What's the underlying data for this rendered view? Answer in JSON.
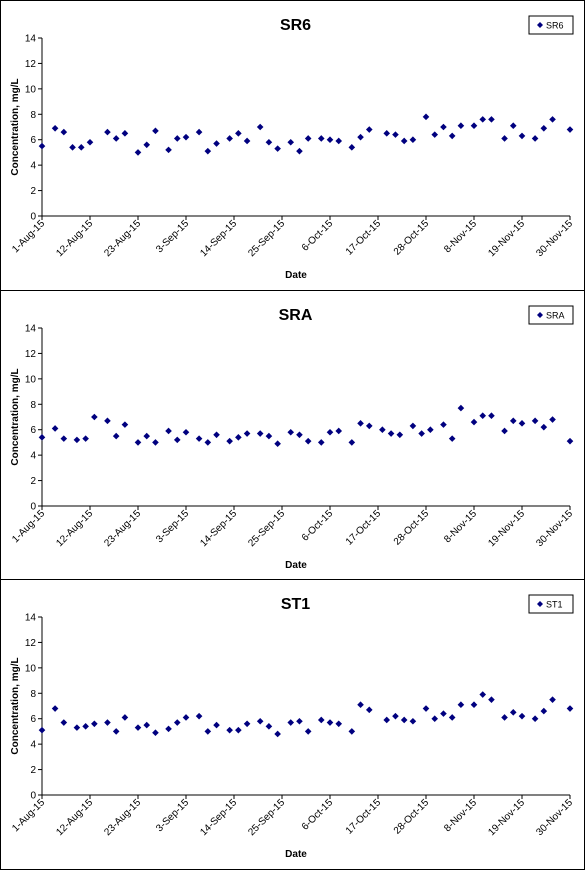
{
  "chart_data": [
    {
      "type": "scatter",
      "title": "SR6",
      "xlabel": "Date",
      "ylabel": "Concentration, mg/L",
      "ylim": [
        0,
        14
      ],
      "yticks": [
        0,
        2,
        4,
        6,
        8,
        10,
        12,
        14
      ],
      "xtick_labels": [
        "1-Aug-15",
        "12-Aug-15",
        "23-Aug-15",
        "3-Sep-15",
        "14-Sep-15",
        "25-Sep-15",
        "6-Oct-15",
        "17-Oct-15",
        "28-Oct-15",
        "8-Nov-15",
        "19-Nov-15",
        "30-Nov-15"
      ],
      "xlim": [
        "2015-08-01",
        "2015-11-30"
      ],
      "marker_color": "#00007f",
      "grid": false,
      "legend_position": "top-right",
      "series": [
        {
          "name": "SR6",
          "x": [
            "2015-08-01",
            "2015-08-04",
            "2015-08-06",
            "2015-08-08",
            "2015-08-10",
            "2015-08-12",
            "2015-08-16",
            "2015-08-18",
            "2015-08-20",
            "2015-08-23",
            "2015-08-25",
            "2015-08-27",
            "2015-08-30",
            "2015-09-01",
            "2015-09-03",
            "2015-09-06",
            "2015-09-08",
            "2015-09-10",
            "2015-09-13",
            "2015-09-15",
            "2015-09-17",
            "2015-09-20",
            "2015-09-22",
            "2015-09-24",
            "2015-09-27",
            "2015-09-29",
            "2015-10-01",
            "2015-10-04",
            "2015-10-06",
            "2015-10-08",
            "2015-10-11",
            "2015-10-13",
            "2015-10-15",
            "2015-10-19",
            "2015-10-21",
            "2015-10-23",
            "2015-10-25",
            "2015-10-28",
            "2015-10-30",
            "2015-11-01",
            "2015-11-03",
            "2015-11-05",
            "2015-11-08",
            "2015-11-10",
            "2015-11-12",
            "2015-11-15",
            "2015-11-17",
            "2015-11-19",
            "2015-11-22",
            "2015-11-24",
            "2015-11-26",
            "2015-11-30"
          ],
          "y": [
            5.5,
            6.9,
            6.6,
            5.4,
            5.4,
            5.8,
            6.6,
            6.1,
            6.5,
            5.0,
            5.6,
            6.7,
            5.2,
            6.1,
            6.2,
            6.6,
            5.1,
            5.7,
            6.1,
            6.5,
            5.9,
            7.0,
            5.8,
            5.3,
            5.8,
            5.1,
            6.1,
            6.1,
            6.0,
            5.9,
            5.4,
            6.2,
            6.8,
            6.5,
            6.4,
            5.9,
            6.0,
            7.8,
            6.4,
            7.0,
            6.3,
            7.1,
            7.1,
            7.6,
            7.6,
            6.1,
            7.1,
            6.3,
            6.1,
            6.9,
            7.6,
            6.8
          ]
        }
      ]
    },
    {
      "type": "scatter",
      "title": "SRA",
      "xlabel": "Date",
      "ylabel": "Concentration, mg/L",
      "ylim": [
        0,
        14
      ],
      "yticks": [
        0,
        2,
        4,
        6,
        8,
        10,
        12,
        14
      ],
      "xtick_labels": [
        "1-Aug-15",
        "12-Aug-15",
        "23-Aug-15",
        "3-Sep-15",
        "14-Sep-15",
        "25-Sep-15",
        "6-Oct-15",
        "17-Oct-15",
        "28-Oct-15",
        "8-Nov-15",
        "19-Nov-15",
        "30-Nov-15"
      ],
      "xlim": [
        "2015-08-01",
        "2015-11-30"
      ],
      "marker_color": "#00007f",
      "grid": false,
      "legend_position": "top-right",
      "series": [
        {
          "name": "SRA",
          "x": [
            "2015-08-01",
            "2015-08-04",
            "2015-08-06",
            "2015-08-09",
            "2015-08-11",
            "2015-08-13",
            "2015-08-16",
            "2015-08-18",
            "2015-08-20",
            "2015-08-23",
            "2015-08-25",
            "2015-08-27",
            "2015-08-30",
            "2015-09-01",
            "2015-09-03",
            "2015-09-06",
            "2015-09-08",
            "2015-09-10",
            "2015-09-13",
            "2015-09-15",
            "2015-09-17",
            "2015-09-20",
            "2015-09-22",
            "2015-09-24",
            "2015-09-27",
            "2015-09-29",
            "2015-10-01",
            "2015-10-04",
            "2015-10-06",
            "2015-10-08",
            "2015-10-11",
            "2015-10-13",
            "2015-10-15",
            "2015-10-18",
            "2015-10-20",
            "2015-10-22",
            "2015-10-25",
            "2015-10-27",
            "2015-10-29",
            "2015-11-01",
            "2015-11-03",
            "2015-11-05",
            "2015-11-08",
            "2015-11-10",
            "2015-11-12",
            "2015-11-15",
            "2015-11-17",
            "2015-11-19",
            "2015-11-22",
            "2015-11-24",
            "2015-11-26",
            "2015-11-30"
          ],
          "y": [
            5.4,
            6.1,
            5.3,
            5.2,
            5.3,
            7.0,
            6.7,
            5.5,
            6.4,
            5.0,
            5.5,
            5.0,
            5.9,
            5.2,
            5.8,
            5.3,
            5.0,
            5.6,
            5.1,
            5.4,
            5.7,
            5.7,
            5.5,
            4.9,
            5.8,
            5.6,
            5.1,
            5.0,
            5.8,
            5.9,
            5.0,
            6.5,
            6.3,
            6.0,
            5.7,
            5.6,
            6.3,
            5.7,
            6.0,
            6.4,
            5.3,
            7.7,
            6.6,
            7.1,
            7.1,
            5.9,
            6.7,
            6.5,
            6.7,
            6.2,
            6.8,
            5.1
          ]
        }
      ]
    },
    {
      "type": "scatter",
      "title": "ST1",
      "xlabel": "Date",
      "ylabel": "Concentration, mg/L",
      "ylim": [
        0,
        14
      ],
      "yticks": [
        0,
        2,
        4,
        6,
        8,
        10,
        12,
        14
      ],
      "xtick_labels": [
        "1-Aug-15",
        "12-Aug-15",
        "23-Aug-15",
        "3-Sep-15",
        "14-Sep-15",
        "25-Sep-15",
        "6-Oct-15",
        "17-Oct-15",
        "28-Oct-15",
        "8-Nov-15",
        "19-Nov-15",
        "30-Nov-15"
      ],
      "xlim": [
        "2015-08-01",
        "2015-11-30"
      ],
      "marker_color": "#00007f",
      "grid": false,
      "legend_position": "top-right",
      "series": [
        {
          "name": "ST1",
          "x": [
            "2015-08-01",
            "2015-08-04",
            "2015-08-06",
            "2015-08-09",
            "2015-08-11",
            "2015-08-13",
            "2015-08-16",
            "2015-08-18",
            "2015-08-20",
            "2015-08-23",
            "2015-08-25",
            "2015-08-27",
            "2015-08-30",
            "2015-09-01",
            "2015-09-03",
            "2015-09-06",
            "2015-09-08",
            "2015-09-10",
            "2015-09-13",
            "2015-09-15",
            "2015-09-17",
            "2015-09-20",
            "2015-09-22",
            "2015-09-24",
            "2015-09-27",
            "2015-09-29",
            "2015-10-01",
            "2015-10-04",
            "2015-10-06",
            "2015-10-08",
            "2015-10-11",
            "2015-10-13",
            "2015-10-15",
            "2015-10-19",
            "2015-10-21",
            "2015-10-23",
            "2015-10-25",
            "2015-10-28",
            "2015-10-30",
            "2015-11-01",
            "2015-11-03",
            "2015-11-05",
            "2015-11-08",
            "2015-11-10",
            "2015-11-12",
            "2015-11-15",
            "2015-11-17",
            "2015-11-19",
            "2015-11-22",
            "2015-11-24",
            "2015-11-26",
            "2015-11-30"
          ],
          "y": [
            5.1,
            6.8,
            5.7,
            5.3,
            5.4,
            5.6,
            5.7,
            5.0,
            6.1,
            5.3,
            5.5,
            4.9,
            5.2,
            5.7,
            6.1,
            6.2,
            5.0,
            5.5,
            5.1,
            5.1,
            5.6,
            5.8,
            5.4,
            4.8,
            5.7,
            5.8,
            5.0,
            5.9,
            5.7,
            5.6,
            5.0,
            7.1,
            6.7,
            5.9,
            6.2,
            5.9,
            5.8,
            6.8,
            6.0,
            6.4,
            6.1,
            7.1,
            7.1,
            7.9,
            7.5,
            6.1,
            6.5,
            6.2,
            6.0,
            6.6,
            7.5,
            6.8
          ]
        }
      ]
    }
  ]
}
